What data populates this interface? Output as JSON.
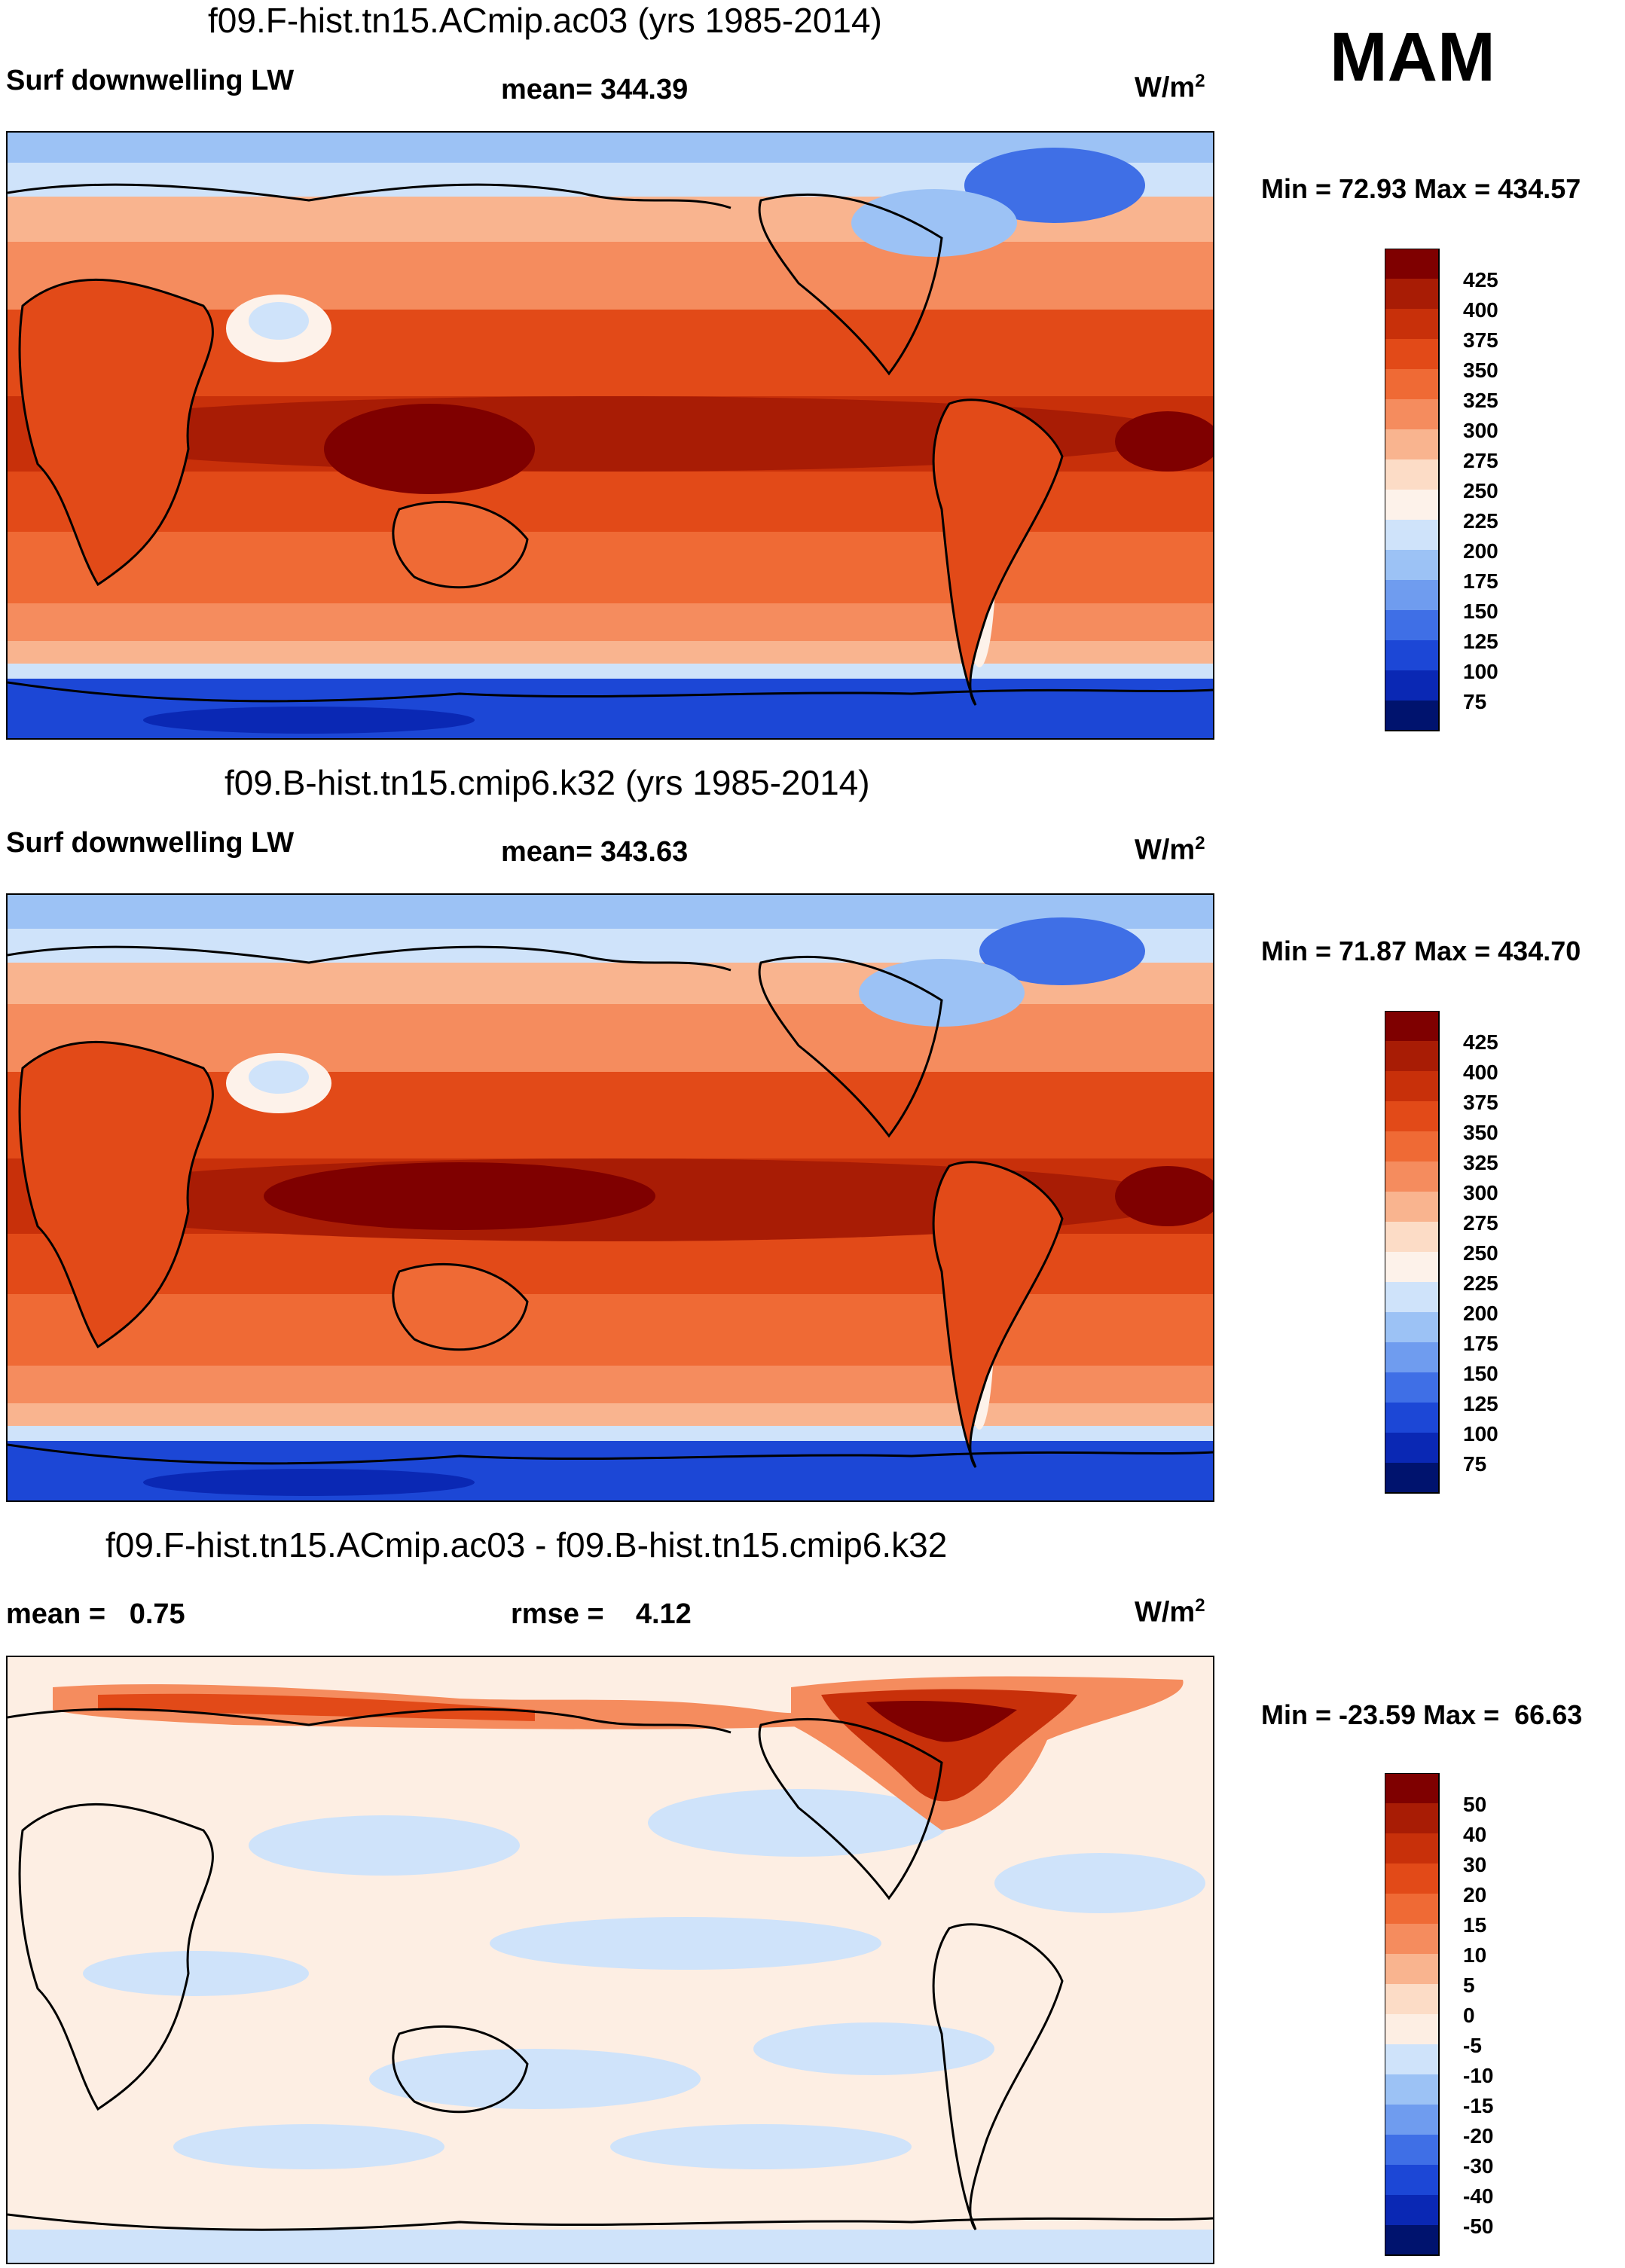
{
  "season": "MAM",
  "panels": [
    {
      "title": "f09.F-hist.tn15.ACmip.ac03 (yrs 1985-2014)",
      "left_label": "Surf downwelling LW",
      "center_label": "mean= 344.39",
      "units_base": "W/m",
      "units_exp": "2",
      "minmax": "Min =  72.93 Max = 434.57"
    },
    {
      "title": "f09.B-hist.tn15.cmip6.k32 (yrs 1985-2014)",
      "left_label": "Surf downwelling LW",
      "center_label": "mean= 343.63",
      "units_base": "W/m",
      "units_exp": "2",
      "minmax": "Min =  71.87 Max = 434.70"
    },
    {
      "title": "f09.F-hist.tn15.ACmip.ac03 - f09.B-hist.tn15.cmip6.k32",
      "left_label": "mean =   0.75",
      "center_label": "rmse =    4.12",
      "units_base": "W/m",
      "units_exp": "2",
      "minmax": "Min = -23.59 Max =  66.63"
    }
  ],
  "chart_data": [
    {
      "type": "heatmap",
      "title": "f09.F-hist.tn15.ACmip.ac03 (yrs 1985-2014)",
      "variable": "Surf downwelling LW",
      "mean": 344.39,
      "min": 72.93,
      "max": 434.57,
      "units": "W/m2",
      "colorbar_levels": [
        425,
        400,
        375,
        350,
        325,
        300,
        275,
        250,
        225,
        200,
        175,
        150,
        125,
        100,
        75
      ],
      "colorbar_colors": [
        "#7f0000",
        "#a81c05",
        "#c8300a",
        "#e24a18",
        "#ef6a35",
        "#f58c5e",
        "#f9b48f",
        "#fcdcc6",
        "#fdf2ea",
        "#cfe3fa",
        "#9cc2f5",
        "#6f9cef",
        "#3f6fe6",
        "#1c47d6",
        "#0a28b4",
        "#00136e"
      ]
    },
    {
      "type": "heatmap",
      "title": "f09.B-hist.tn15.cmip6.k32 (yrs 1985-2014)",
      "variable": "Surf downwelling LW",
      "mean": 343.63,
      "min": 71.87,
      "max": 434.7,
      "units": "W/m2",
      "colorbar_levels": [
        425,
        400,
        375,
        350,
        325,
        300,
        275,
        250,
        225,
        200,
        175,
        150,
        125,
        100,
        75
      ],
      "colorbar_colors": [
        "#7f0000",
        "#a81c05",
        "#c8300a",
        "#e24a18",
        "#ef6a35",
        "#f58c5e",
        "#f9b48f",
        "#fcdcc6",
        "#fdf2ea",
        "#cfe3fa",
        "#9cc2f5",
        "#6f9cef",
        "#3f6fe6",
        "#1c47d6",
        "#0a28b4",
        "#00136e"
      ]
    },
    {
      "type": "heatmap",
      "title": "f09.F-hist.tn15.ACmip.ac03 - f09.B-hist.tn15.cmip6.k32",
      "variable": "difference",
      "mean": 0.75,
      "rmse": 4.12,
      "min": -23.59,
      "max": 66.63,
      "units": "W/m2",
      "colorbar_levels": [
        50,
        40,
        30,
        20,
        15,
        10,
        5,
        0,
        -5,
        -10,
        -15,
        -20,
        -30,
        -40,
        -50
      ],
      "colorbar_colors": [
        "#7f0000",
        "#a81c05",
        "#c8300a",
        "#e24a18",
        "#ef6a35",
        "#f58c5e",
        "#f9b48f",
        "#fcdcc6",
        "#fdeee3",
        "#cfe3fa",
        "#9cc2f5",
        "#6f9cef",
        "#3f6fe6",
        "#1c47d6",
        "#0a28b4",
        "#00136e"
      ]
    }
  ]
}
